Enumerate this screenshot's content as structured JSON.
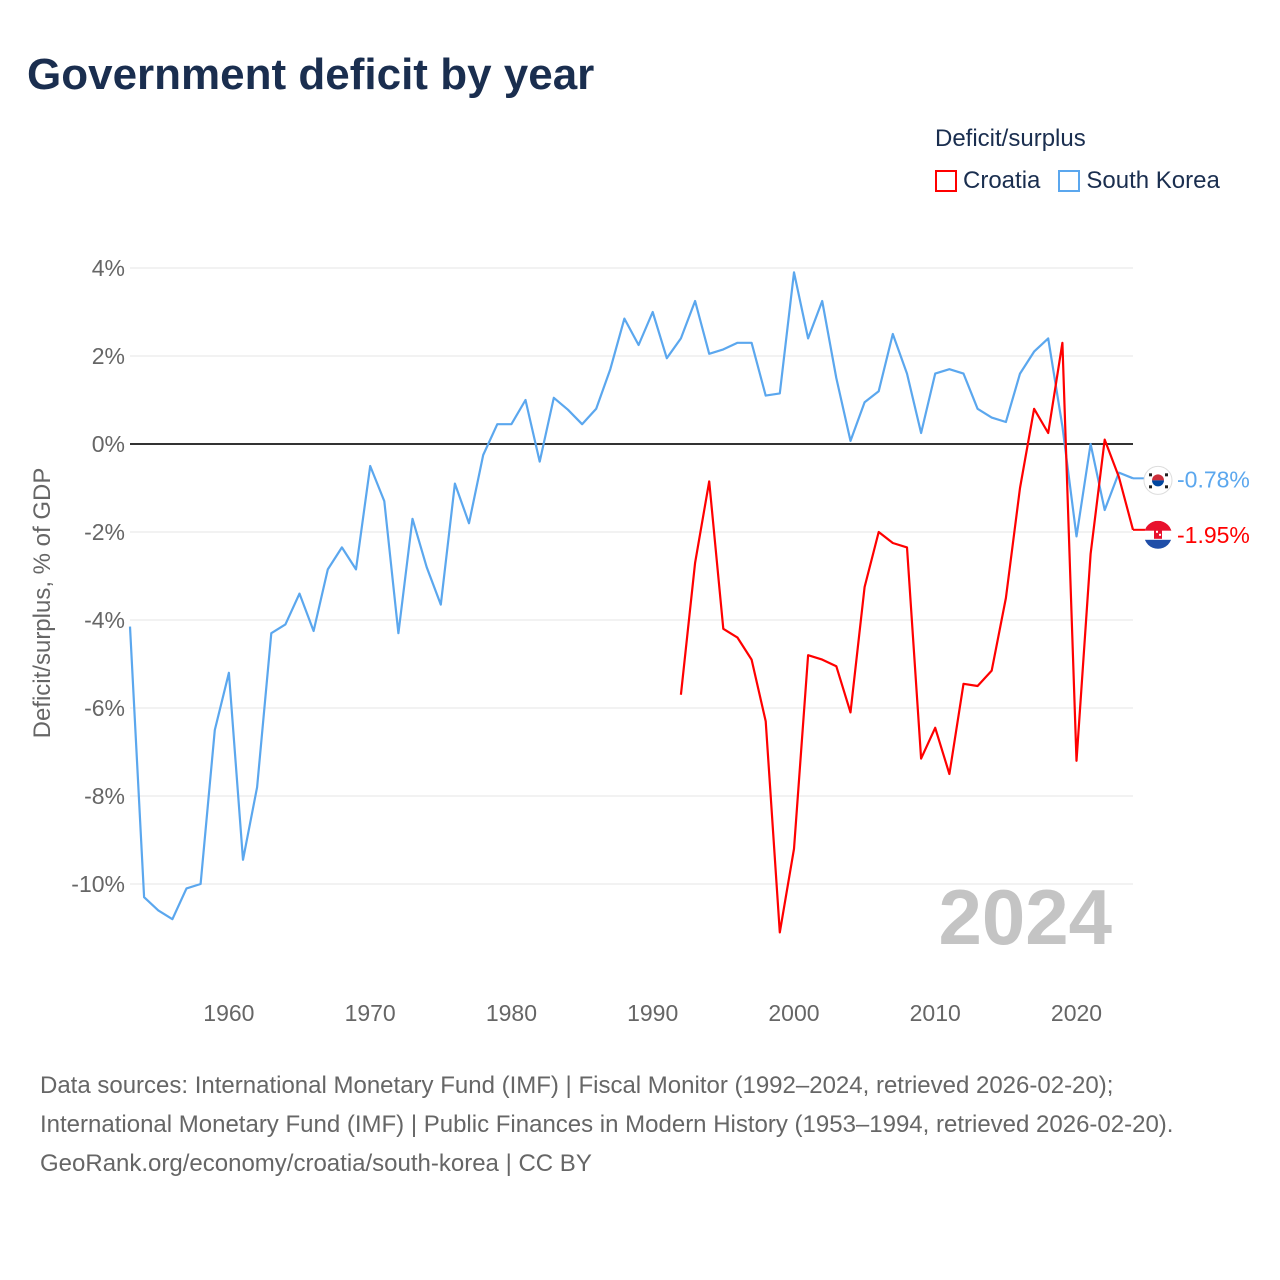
{
  "title": "Government deficit by year",
  "legend": {
    "title": "Deficit/surplus",
    "items": [
      {
        "label": "Croatia",
        "color": "#ff0000"
      },
      {
        "label": "South Korea",
        "color": "#5ba7ee"
      }
    ]
  },
  "footer": {
    "sources": "Data sources: International Monetary Fund (IMF) | Fiscal Monitor (1992–2024, retrieved 2026-02-20); International Monetary Fund (IMF) | Public Finances in Modern History (1953–1994, retrieved 2026-02-20).",
    "credit": "GeoRank.org/economy/croatia/south-korea | CC BY"
  },
  "chart_data": {
    "type": "line",
    "title": "Government deficit by year",
    "xlabel": "",
    "ylabel": "Deficit/surplus, % of GDP",
    "xlim": [
      1953,
      2024
    ],
    "ylim": [
      -11.5,
      4.3
    ],
    "yticks": [
      4,
      2,
      0,
      -2,
      -4,
      -6,
      -8,
      -10
    ],
    "ytick_labels": [
      "4%",
      "2%",
      "0%",
      "-2%",
      "-4%",
      "-6%",
      "-8%",
      "-10%"
    ],
    "xticks": [
      1960,
      1970,
      1980,
      1990,
      2000,
      2010,
      2020
    ],
    "xtick_labels": [
      "1960",
      "1970",
      "1980",
      "1990",
      "2000",
      "2010",
      "2020"
    ],
    "watermark_year": "2024",
    "grid": true,
    "legend_position": "top-right",
    "series": [
      {
        "name": "South Korea",
        "color": "#5ba7ee",
        "end_label": "-0.78%",
        "start_year": 1953,
        "values": [
          -4.15,
          -10.3,
          -10.6,
          -10.8,
          -10.1,
          -10.0,
          -6.5,
          -5.2,
          -9.45,
          -7.8,
          -4.3,
          -4.1,
          -3.4,
          -4.25,
          -2.85,
          -2.35,
          -2.85,
          -0.5,
          -1.3,
          -4.3,
          -1.7,
          -2.8,
          -3.65,
          -0.9,
          -1.8,
          -0.25,
          0.45,
          0.45,
          1.0,
          -0.4,
          1.05,
          0.78,
          0.45,
          0.8,
          1.7,
          2.85,
          2.25,
          3.0,
          1.95,
          2.4,
          3.25,
          2.05,
          2.15,
          2.3,
          2.3,
          1.1,
          1.15,
          3.9,
          2.4,
          3.25,
          1.5,
          0.07,
          0.95,
          1.2,
          2.5,
          1.6,
          0.25,
          1.6,
          1.7,
          1.6,
          0.8,
          0.6,
          0.5,
          1.6,
          2.1,
          2.4,
          0.4,
          -2.1,
          0.0,
          -1.5,
          -0.65,
          -0.78
        ]
      },
      {
        "name": "Croatia",
        "color": "#ff0000",
        "end_label": "-1.95%",
        "start_year": 1992,
        "values": [
          -5.7,
          -2.7,
          -0.85,
          -4.2,
          -4.4,
          -4.9,
          -6.3,
          -11.1,
          -9.2,
          -4.8,
          -4.9,
          -5.05,
          -6.1,
          -3.25,
          -2.0,
          -2.25,
          -2.35,
          -7.15,
          -6.45,
          -7.5,
          -5.45,
          -5.5,
          -5.15,
          -3.5,
          -1.0,
          0.8,
          0.25,
          2.3,
          -7.2,
          -2.5,
          0.1,
          -0.75,
          -1.95
        ]
      }
    ]
  }
}
